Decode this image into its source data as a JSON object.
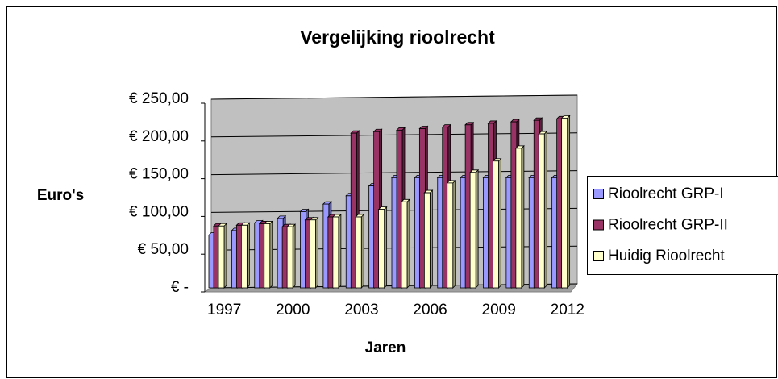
{
  "chart_data": {
    "type": "bar",
    "title": "Vergelijking rioolrecht",
    "y_label": "Euro's",
    "x_label": "Jaren",
    "categories": [
      "1997",
      null,
      null,
      "2000",
      null,
      null,
      "2003",
      null,
      null,
      "2006",
      null,
      null,
      "2009",
      null,
      null,
      "2012"
    ],
    "series": [
      {
        "name": "Rioolrecht GRP-I",
        "color": "#9999ff",
        "values": [
          70,
          76,
          86,
          92,
          101,
          111,
          122,
          135,
          146,
          146,
          146,
          146,
          146,
          146,
          146,
          146
        ]
      },
      {
        "name": "Rioolrecht GRP-II",
        "color": "#993366",
        "values": [
          82,
          83,
          85,
          81,
          90,
          94,
          205,
          207,
          209,
          211,
          213,
          216,
          218,
          220,
          222,
          224
        ]
      },
      {
        "name": "Huidig Rioolrecht",
        "color": "#ffffcc",
        "values": [
          82,
          83,
          85,
          81,
          90,
          94,
          94,
          104,
          114,
          126,
          139,
          153,
          168,
          185,
          204,
          225
        ]
      }
    ],
    "ylim": [
      0,
      250
    ],
    "yticks": [
      {
        "value": 0,
        "label": "€ -"
      },
      {
        "value": 50,
        "label": "€ 50,00"
      },
      {
        "value": 100,
        "label": "€ 100,00"
      },
      {
        "value": 150,
        "label": "€ 150,00"
      },
      {
        "value": 200,
        "label": "€ 200,00"
      },
      {
        "value": 250,
        "label": "€ 250,00"
      }
    ],
    "grid": true,
    "legend": "right"
  }
}
